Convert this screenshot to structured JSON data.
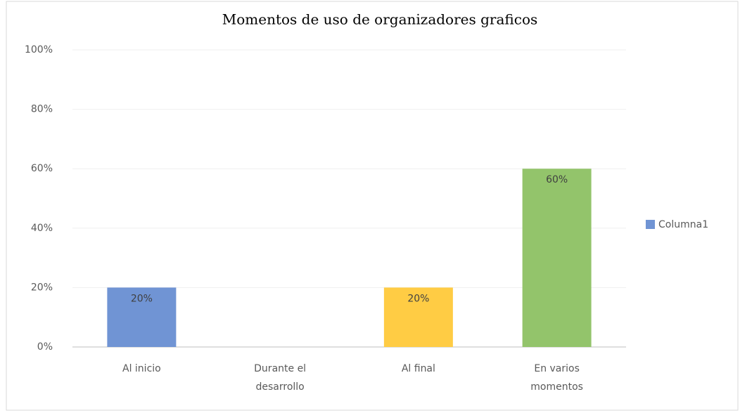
{
  "chart_data": {
    "type": "bar",
    "title": "Momentos de uso de organizadores graficos",
    "categories": [
      "Al inicio",
      "Durante el desarrollo",
      "Al final",
      "En varios momentos"
    ],
    "series": [
      {
        "name": "Columna1",
        "color": "#7094d4",
        "colors": [
          "#7094d4",
          null,
          "#ffcc44",
          "#93c46b"
        ],
        "values": [
          20,
          0,
          20,
          60
        ],
        "value_labels": [
          "20%",
          null,
          "20%",
          "60%"
        ]
      }
    ],
    "ylim": [
      0,
      100
    ],
    "yticks": [
      {
        "value": 0,
        "label": "0%"
      },
      {
        "value": 20,
        "label": "20%"
      },
      {
        "value": 40,
        "label": "40%"
      },
      {
        "value": 60,
        "label": "60%"
      },
      {
        "value": 80,
        "label": "80%"
      },
      {
        "value": 100,
        "label": "100%"
      }
    ],
    "grid": true,
    "legend": "right"
  }
}
